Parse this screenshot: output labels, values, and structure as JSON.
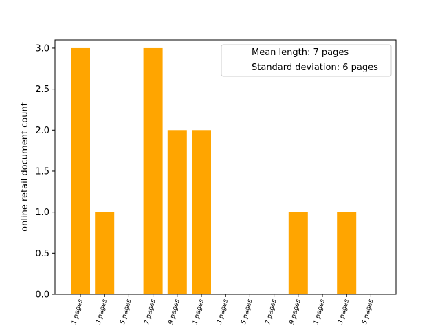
{
  "chart_data": {
    "type": "bar",
    "categories": [
      "1 pages",
      "3 pages",
      "5 pages",
      "7 pages",
      "9 pages",
      "1 pages",
      "3 pages",
      "5 pages",
      "7 pages",
      "9 pages",
      "1 pages",
      "3 pages",
      "5 pages"
    ],
    "values": [
      3,
      1,
      0,
      3,
      2,
      2,
      0,
      0,
      0,
      1,
      0,
      1,
      0
    ],
    "title": "",
    "xlabel": "",
    "ylabel": "online retail document count",
    "ylim": [
      0,
      3.1
    ],
    "yticks": [
      "0.0",
      "0.5",
      "1.0",
      "1.5",
      "2.0",
      "2.5",
      "3.0"
    ],
    "legend": {
      "placement": "top-right",
      "entries": [
        "Mean length: 7 pages",
        "Standard deviation: 6 pages"
      ]
    },
    "bar_color": "#ffa500",
    "grid": false
  }
}
